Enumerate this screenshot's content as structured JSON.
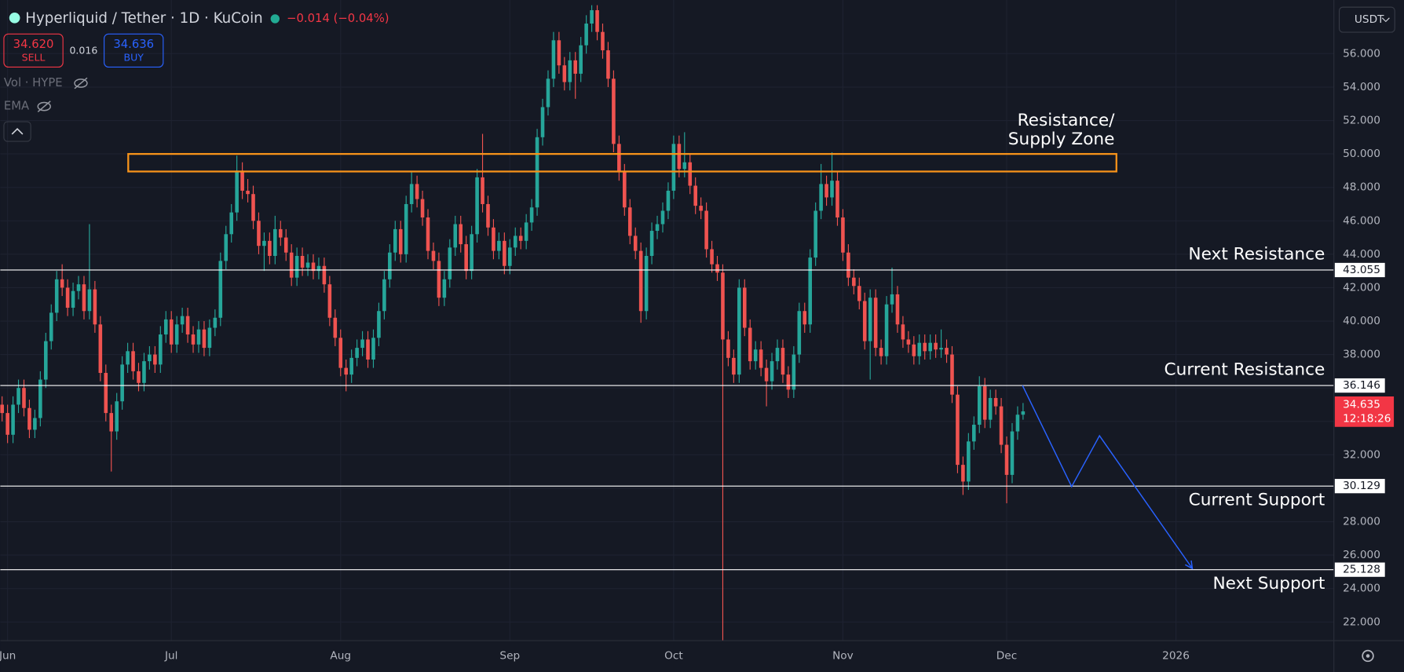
{
  "ui": {
    "symbol": "Hyperliquid / Tether · 1D · KuCoin",
    "change": "−0.014 (−0.04%)",
    "sell_price": "34.620",
    "sell_label": "SELL",
    "spread": "0.016",
    "buy_price": "34.636",
    "buy_label": "BUY",
    "indicators": [
      "Vol · HYPE",
      "EMA"
    ],
    "currency": "USDT",
    "countdown": "12:18:26"
  },
  "chart_data": {
    "type": "candlestick",
    "x": [
      0,
      1,
      2,
      3,
      4,
      5,
      6,
      7,
      8,
      9,
      10,
      11,
      12,
      13,
      14,
      15,
      16,
      17,
      18,
      19,
      20,
      21,
      22,
      23,
      24,
      25,
      26,
      27,
      28,
      29,
      30,
      31,
      32,
      33,
      34,
      35,
      36,
      37,
      38,
      39,
      40,
      41,
      42,
      43,
      44,
      45,
      46,
      47,
      48,
      49,
      50,
      51,
      52,
      53,
      54,
      55,
      56,
      57,
      58,
      59,
      60,
      61,
      62,
      63,
      64,
      65,
      66,
      67,
      68,
      69,
      70,
      71,
      72,
      73,
      74,
      75,
      76,
      77,
      78,
      79,
      80,
      81,
      82,
      83,
      84,
      85,
      86,
      87,
      88,
      89,
      90,
      91,
      92,
      93,
      94,
      95,
      96,
      97,
      98,
      99,
      100,
      101,
      102,
      103,
      104,
      105,
      106,
      107,
      108,
      109,
      110,
      111,
      112,
      113,
      114,
      115,
      116,
      117,
      118,
      119,
      120,
      121,
      122,
      123,
      124,
      125,
      126,
      127,
      128,
      129,
      130,
      131,
      132,
      133,
      134,
      135,
      136,
      137,
      138,
      139,
      140,
      141,
      142,
      143,
      144,
      145,
      146,
      147,
      148,
      149,
      150,
      151,
      152,
      153,
      154,
      155,
      156,
      157,
      158,
      159,
      160,
      161,
      162,
      163,
      164,
      165,
      166,
      167,
      168,
      169,
      170,
      171,
      172,
      173,
      174,
      175,
      176,
      177,
      178,
      179,
      180,
      181,
      182,
      183,
      184,
      185,
      186,
      187
    ],
    "open": [
      35.0,
      34.5,
      33.2,
      35.0,
      36.0,
      34.8,
      33.5,
      34.2,
      36.5,
      38.8,
      40.5,
      42.5,
      42.0,
      40.8,
      41.8,
      42.2,
      40.6,
      41.9,
      39.8,
      36.9,
      34.5,
      33.4,
      35.2,
      37.4,
      38.2,
      37.0,
      36.3,
      37.6,
      38.0,
      37.4,
      39.2,
      40.1,
      38.6,
      39.8,
      40.3,
      39.2,
      38.6,
      39.5,
      38.4,
      39.6,
      40.2,
      43.6,
      45.2,
      46.5,
      49.0,
      47.8,
      47.6,
      46.0,
      44.5,
      44.8,
      43.9,
      45.5,
      45.0,
      44.1,
      42.6,
      43.9,
      43.2,
      43.5,
      43.0,
      43.3,
      42.2,
      40.2,
      39.0,
      37.2,
      36.8,
      37.8,
      38.4,
      38.9,
      37.7,
      39.0,
      40.6,
      42.5,
      44.1,
      45.5,
      44.0,
      47.0,
      48.2,
      47.3,
      46.2,
      44.2,
      43.6,
      41.4,
      42.5,
      44.4,
      45.8,
      44.6,
      43.0,
      45.2,
      48.6,
      47.0,
      45.6,
      44.2,
      44.8,
      43.3,
      44.4,
      45.1,
      44.8,
      45.9,
      46.8,
      51.0,
      52.8,
      54.5,
      56.8,
      55.3,
      54.3,
      55.6,
      54.8,
      56.5,
      57.8,
      58.6,
      57.3,
      56.2,
      54.5,
      50.6,
      48.9,
      46.8,
      45.1,
      44.2,
      40.6,
      43.9,
      45.4,
      45.8,
      46.6,
      47.8,
      50.6,
      49.1,
      49.5,
      48.1,
      46.9,
      46.6,
      44.3,
      43.4,
      42.9,
      38.9,
      37.8,
      36.8,
      42.0,
      39.6,
      37.6,
      38.3,
      37.2,
      36.4,
      37.6,
      38.4,
      36.8,
      35.9,
      38.0,
      40.6,
      39.8,
      43.8,
      46.6,
      48.2,
      47.4,
      48.4,
      46.2,
      44.1,
      42.6,
      42.1,
      41.2,
      38.8,
      41.4,
      38.4,
      37.9,
      41.0,
      41.6,
      39.8,
      38.9,
      38.6,
      37.9,
      38.7,
      38.2,
      38.7,
      38.3,
      38.4,
      38.0,
      35.6,
      31.4,
      30.4,
      32.8,
      33.8,
      36.1,
      34.1,
      35.4,
      34.9,
      32.6,
      30.8,
      33.4,
      34.4
    ],
    "high": [
      35.5,
      35.0,
      35.5,
      36.5,
      36.5,
      35.3,
      34.7,
      37.0,
      39.3,
      41.0,
      43.0,
      43.4,
      42.5,
      42.3,
      42.7,
      42.7,
      45.8,
      42.4,
      40.3,
      37.4,
      35.0,
      35.7,
      37.9,
      38.7,
      38.7,
      37.5,
      38.1,
      38.5,
      38.5,
      39.7,
      40.6,
      40.6,
      40.3,
      40.8,
      40.8,
      39.7,
      40.0,
      40.0,
      40.1,
      40.7,
      44.1,
      45.7,
      47.0,
      49.9,
      49.5,
      48.5,
      48.1,
      46.5,
      45.3,
      45.3,
      46.3,
      46.0,
      45.5,
      44.6,
      44.4,
      44.4,
      44.0,
      44.0,
      43.8,
      43.8,
      42.7,
      40.7,
      39.5,
      37.7,
      38.3,
      38.9,
      39.4,
      39.4,
      39.5,
      41.1,
      43.0,
      44.6,
      46.0,
      46.0,
      47.5,
      48.9,
      48.7,
      47.8,
      46.7,
      44.7,
      44.1,
      43.0,
      44.9,
      46.3,
      46.3,
      45.1,
      45.7,
      49.1,
      51.2,
      47.5,
      46.1,
      45.3,
      45.3,
      44.9,
      45.6,
      45.6,
      46.4,
      47.3,
      51.5,
      53.3,
      55.0,
      57.3,
      57.3,
      55.8,
      56.1,
      56.1,
      57.0,
      58.3,
      58.9,
      58.9,
      57.8,
      56.7,
      55.0,
      51.1,
      49.4,
      47.3,
      45.6,
      44.7,
      44.4,
      45.9,
      46.3,
      47.1,
      48.3,
      51.1,
      51.1,
      51.3,
      50.0,
      48.6,
      47.4,
      47.1,
      44.8,
      43.9,
      43.4,
      39.4,
      38.3,
      42.5,
      42.5,
      40.1,
      38.8,
      38.8,
      37.7,
      38.1,
      38.9,
      38.9,
      37.3,
      38.5,
      41.1,
      41.1,
      44.3,
      47.1,
      49.4,
      48.7,
      50.1,
      48.9,
      46.7,
      44.6,
      43.1,
      42.6,
      41.7,
      41.9,
      41.9,
      38.9,
      41.5,
      43.2,
      42.1,
      40.3,
      39.4,
      39.1,
      39.2,
      39.2,
      39.2,
      39.2,
      39.5,
      38.9,
      38.5,
      36.1,
      31.9,
      33.3,
      34.3,
      36.7,
      36.6,
      35.9,
      35.9,
      35.4,
      33.1,
      33.9,
      34.9,
      35.1
    ],
    "low": [
      34.0,
      32.7,
      32.7,
      34.5,
      34.3,
      33.0,
      33.0,
      33.7,
      36.0,
      38.3,
      40.0,
      41.5,
      40.3,
      40.3,
      41.3,
      40.1,
      40.1,
      39.3,
      36.4,
      34.0,
      31.0,
      32.9,
      34.7,
      36.9,
      36.5,
      35.8,
      35.8,
      37.1,
      36.9,
      36.9,
      38.7,
      38.1,
      38.1,
      39.3,
      38.7,
      38.1,
      38.1,
      37.9,
      37.9,
      39.1,
      39.7,
      43.1,
      44.7,
      46.0,
      47.3,
      47.1,
      45.5,
      44.0,
      43.0,
      43.4,
      43.4,
      44.5,
      43.6,
      42.1,
      42.1,
      42.7,
      42.7,
      42.5,
      42.5,
      41.7,
      39.7,
      38.5,
      36.7,
      35.8,
      36.3,
      37.3,
      37.9,
      37.2,
      37.2,
      38.5,
      40.1,
      42.0,
      43.6,
      43.5,
      43.5,
      46.5,
      46.8,
      45.7,
      43.7,
      43.1,
      40.9,
      40.9,
      42.0,
      43.9,
      44.1,
      42.5,
      42.5,
      44.7,
      46.5,
      45.1,
      43.7,
      43.7,
      42.8,
      42.8,
      43.9,
      44.3,
      44.3,
      45.4,
      46.3,
      50.5,
      52.3,
      54.0,
      54.8,
      53.8,
      53.8,
      53.3,
      54.3,
      56.0,
      57.3,
      56.8,
      55.7,
      54.0,
      50.1,
      48.4,
      46.3,
      44.6,
      43.7,
      39.9,
      40.1,
      43.4,
      44.9,
      45.3,
      46.1,
      47.3,
      48.6,
      48.6,
      47.6,
      46.4,
      46.1,
      43.8,
      42.9,
      42.4,
      20.9,
      37.3,
      36.3,
      36.3,
      39.1,
      37.1,
      37.1,
      36.7,
      34.9,
      35.9,
      37.1,
      36.3,
      35.4,
      35.4,
      37.5,
      39.3,
      39.3,
      43.3,
      46.1,
      46.9,
      46.9,
      45.7,
      43.6,
      42.1,
      41.6,
      40.7,
      38.3,
      36.5,
      37.9,
      37.4,
      37.4,
      40.5,
      39.3,
      38.4,
      38.1,
      37.4,
      37.4,
      37.7,
      37.7,
      37.8,
      37.8,
      37.5,
      35.1,
      30.9,
      29.6,
      29.9,
      32.3,
      33.3,
      33.6,
      33.6,
      34.4,
      32.1,
      29.1,
      30.3,
      32.9,
      34.1
    ],
    "close": [
      34.5,
      33.2,
      35.0,
      36.0,
      34.8,
      33.5,
      34.2,
      36.5,
      38.8,
      40.5,
      42.5,
      42.0,
      40.8,
      41.8,
      42.2,
      40.6,
      41.9,
      39.8,
      36.9,
      34.5,
      33.4,
      35.2,
      37.4,
      38.2,
      37.0,
      36.3,
      37.6,
      38.0,
      37.4,
      39.2,
      40.1,
      38.6,
      39.8,
      40.3,
      39.2,
      38.6,
      39.5,
      38.4,
      39.6,
      40.2,
      43.6,
      45.2,
      46.5,
      49.0,
      47.8,
      47.6,
      46.0,
      44.5,
      44.8,
      43.9,
      45.5,
      45.0,
      44.1,
      42.6,
      43.9,
      43.2,
      43.5,
      43.0,
      43.3,
      42.2,
      40.2,
      39.0,
      37.2,
      36.8,
      37.8,
      38.4,
      38.9,
      37.7,
      39.0,
      40.6,
      42.5,
      44.1,
      45.5,
      44.0,
      47.0,
      48.2,
      47.3,
      46.2,
      44.2,
      43.6,
      41.4,
      42.5,
      44.4,
      45.8,
      44.6,
      43.0,
      45.2,
      48.6,
      47.0,
      45.6,
      44.2,
      44.8,
      43.3,
      44.4,
      45.1,
      44.8,
      45.9,
      46.8,
      51.0,
      52.8,
      54.5,
      56.8,
      55.3,
      54.3,
      55.6,
      54.8,
      56.5,
      57.8,
      58.6,
      57.3,
      56.2,
      54.5,
      50.6,
      48.9,
      46.8,
      45.1,
      44.2,
      40.6,
      43.9,
      45.4,
      45.8,
      46.6,
      47.8,
      50.6,
      49.1,
      49.5,
      48.1,
      46.9,
      46.6,
      44.3,
      43.4,
      42.9,
      38.9,
      37.8,
      36.8,
      42.0,
      39.6,
      37.6,
      38.3,
      37.2,
      36.4,
      37.6,
      38.4,
      36.8,
      35.9,
      38.0,
      40.6,
      39.8,
      43.8,
      46.6,
      48.2,
      47.4,
      48.4,
      46.2,
      44.1,
      42.6,
      42.1,
      41.2,
      38.8,
      41.4,
      38.4,
      37.9,
      41.0,
      41.6,
      39.8,
      38.9,
      38.6,
      37.9,
      38.7,
      38.2,
      38.7,
      38.3,
      38.4,
      38.0,
      35.6,
      31.4,
      30.4,
      32.8,
      33.8,
      36.1,
      34.1,
      35.4,
      34.9,
      32.6,
      30.8,
      33.4,
      34.4,
      34.6
    ],
    "up_color": "#26a69a",
    "down_color": "#ef5350",
    "xlim": [
      -0.33,
      243.93
    ],
    "xticks": [
      {
        "value": 1,
        "label": "Jun"
      },
      {
        "value": 31,
        "label": "Jul"
      },
      {
        "value": 62,
        "label": "Aug"
      },
      {
        "value": 93,
        "label": "Sep"
      },
      {
        "value": 123,
        "label": "Oct"
      },
      {
        "value": 154,
        "label": "Nov"
      },
      {
        "value": 184,
        "label": "Dec"
      },
      {
        "value": 215,
        "label": "2026"
      }
    ],
    "ylim": [
      20.88,
      59.21
    ],
    "yticks": [
      {
        "value": 22,
        "label": "22.000"
      },
      {
        "value": 24,
        "label": "24.000"
      },
      {
        "value": 26,
        "label": "26.000"
      },
      {
        "value": 28,
        "label": "28.000"
      },
      {
        "value": 30,
        "label": "30.000"
      },
      {
        "value": 32,
        "label": "32.000"
      },
      {
        "value": 34,
        "label": "34.000"
      },
      {
        "value": 36,
        "label": "36.000"
      },
      {
        "value": 38,
        "label": "38.000"
      },
      {
        "value": 40,
        "label": "40.000"
      },
      {
        "value": 42,
        "label": "42.000"
      },
      {
        "value": 44,
        "label": "44.000"
      },
      {
        "value": 46,
        "label": "46.000"
      },
      {
        "value": 48,
        "label": "48.000"
      },
      {
        "value": 50,
        "label": "50.000"
      },
      {
        "value": 52,
        "label": "52.000"
      },
      {
        "value": 54,
        "label": "54.000"
      },
      {
        "value": 56,
        "label": "56.000"
      }
    ],
    "grid": true,
    "levels": [
      {
        "name": "Next Resistance",
        "value": 43.055,
        "label_position": "above"
      },
      {
        "name": "Current Resistance",
        "value": 36.146,
        "label_position": "above"
      },
      {
        "name": "Current Support",
        "value": 30.129,
        "label_position": "below"
      },
      {
        "name": "Next Support",
        "value": 25.128,
        "label_position": "below"
      }
    ],
    "last_price": 34.635,
    "zone": {
      "label_lines": [
        "Resistance/",
        "Supply Zone"
      ],
      "low": 48.95,
      "high": 50.0,
      "x": [
        23.1,
        204.1
      ],
      "color": "#f7931a"
    },
    "projection": {
      "x": [
        186.9,
        195.9,
        201.0,
        218.0
      ],
      "y": [
        36.146,
        30.1,
        33.14,
        25.2
      ],
      "color": "#2962ff"
    }
  }
}
